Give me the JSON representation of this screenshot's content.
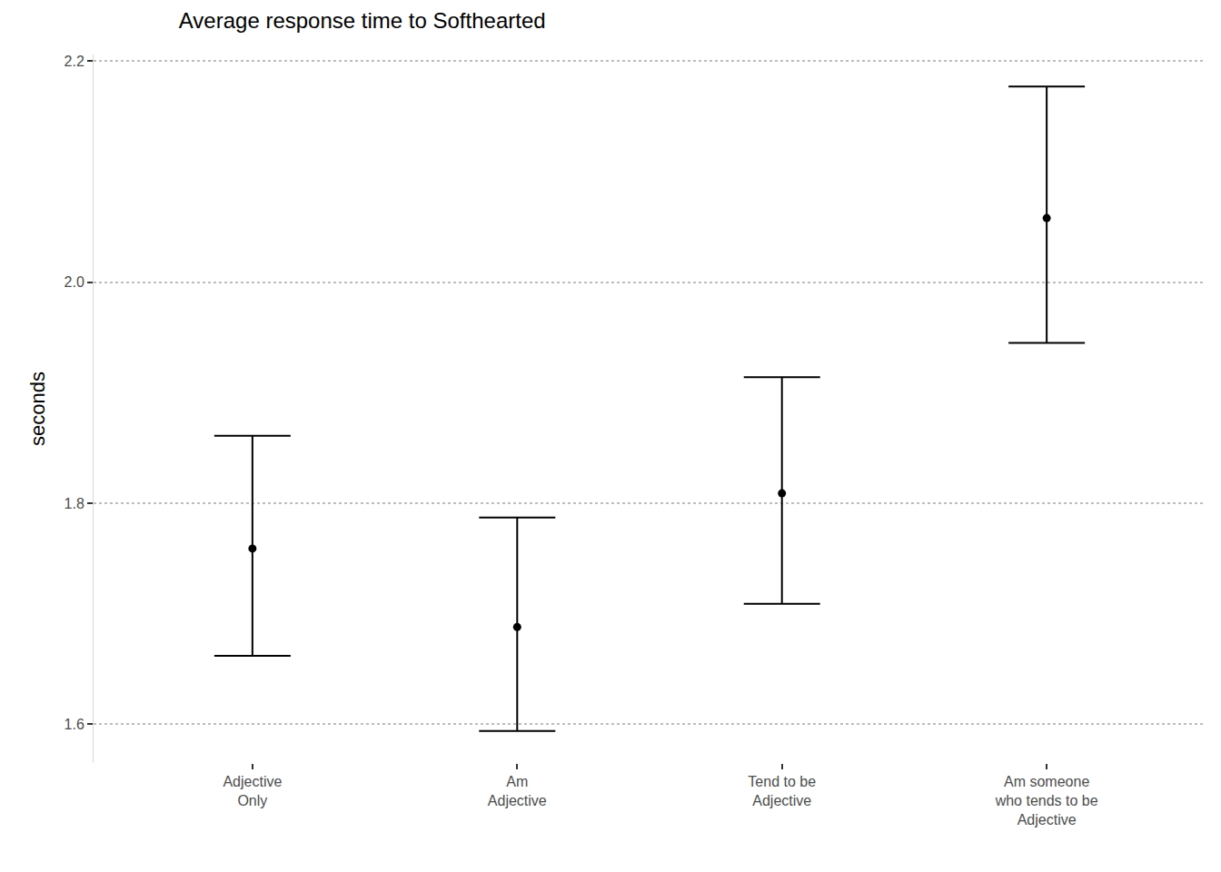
{
  "chart_data": {
    "type": "scatter",
    "title": "Average response time to Softhearted",
    "y_label": "seconds",
    "categories": [
      "Adjective\nOnly",
      "Am\nAdjective",
      "Tend to be\nAdjective",
      "Am someone\nwho tends to be\nAdjective"
    ],
    "values": [
      1.759,
      1.688,
      1.809,
      2.058
    ],
    "upper": [
      1.861,
      1.787,
      1.914,
      2.177
    ],
    "lower": [
      1.662,
      1.594,
      1.709,
      1.945
    ],
    "color": "#000000",
    "marker": "circle",
    "ylim": [
      1.565,
      2.206
    ],
    "yticks": [
      1.6,
      {
        "value": 1.8,
        "label": "1.8"
      },
      {
        "value": 2.0,
        "label": "2.0"
      },
      2.2
    ],
    "grid": true
  }
}
